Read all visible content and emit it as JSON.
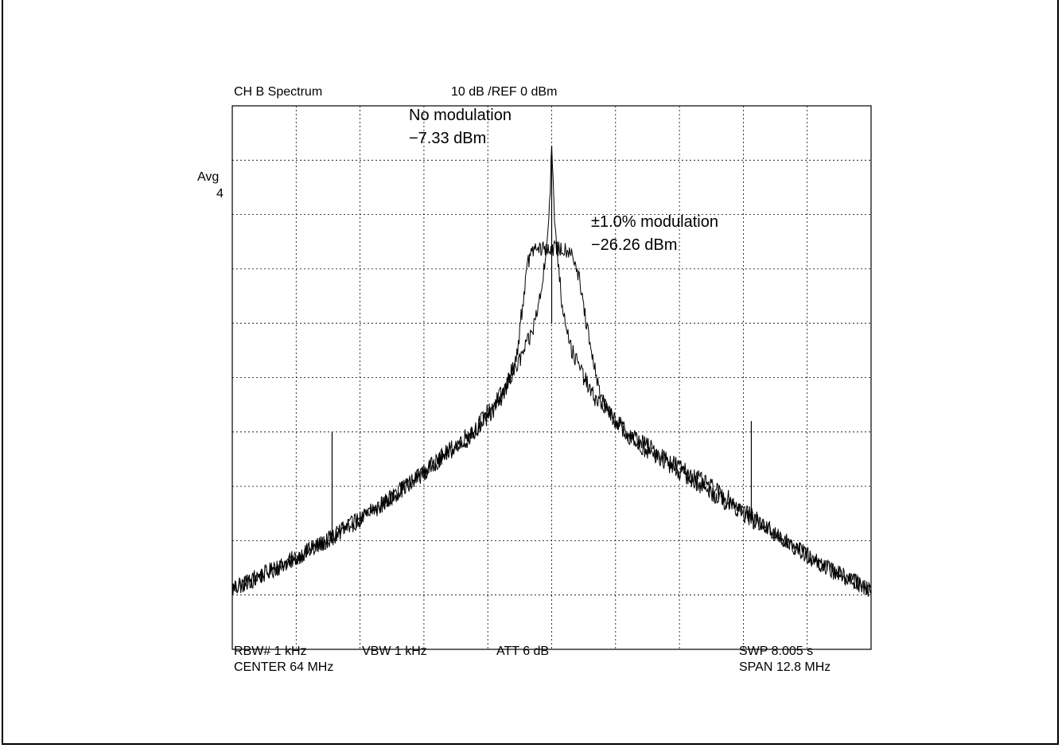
{
  "header": {
    "title": "CH B Spectrum",
    "scale_ref": "10 dB /REF 0 dBm",
    "avg_label": "Avg",
    "avg_value": "4"
  },
  "annotations": {
    "no_mod_title": "No modulation",
    "no_mod_value": "−7.33 dBm",
    "mod_title": "±1.0% modulation",
    "mod_value": "−26.26 dBm"
  },
  "footer": {
    "rbw": "RBW# 1 kHz",
    "vbw": "VBW 1 kHz",
    "att": "ATT 6 dB",
    "swp": "SWP  8.005 s",
    "center": "CENTER  64 MHz",
    "span": "SPAN   12.8 MHz"
  },
  "chart_data": {
    "type": "line",
    "x_unit": "MHz",
    "y_unit": "dBm",
    "xlim": [
      57.6,
      70.4
    ],
    "ylim": [
      -100,
      0
    ],
    "grid": true,
    "series": [
      {
        "points": [
          [
            57.6,
            -89
          ],
          [
            58.5,
            -85
          ],
          [
            59.5,
            -80
          ],
          [
            60.5,
            -74
          ],
          [
            61.5,
            -67
          ],
          [
            62.5,
            -59
          ],
          [
            63.0,
            -53
          ],
          [
            63.3,
            -48
          ],
          [
            63.6,
            -42
          ],
          [
            63.8,
            -34
          ],
          [
            63.95,
            -20
          ],
          [
            64.0,
            -7.33
          ],
          [
            64.05,
            -20
          ],
          [
            64.2,
            -36
          ],
          [
            64.4,
            -45
          ],
          [
            64.8,
            -53
          ],
          [
            65.5,
            -60
          ],
          [
            66.5,
            -66
          ],
          [
            67.5,
            -72
          ],
          [
            68.5,
            -79
          ],
          [
            69.5,
            -85
          ],
          [
            70.4,
            -89
          ]
        ]
      },
      {
        "points": [
          [
            57.6,
            -89
          ],
          [
            58.5,
            -85
          ],
          [
            59.5,
            -80
          ],
          [
            60.5,
            -74
          ],
          [
            61.5,
            -67
          ],
          [
            62.5,
            -60
          ],
          [
            63.0,
            -54
          ],
          [
            63.3,
            -46
          ],
          [
            63.5,
            -30
          ],
          [
            63.6,
            -26.5
          ],
          [
            64.0,
            -26.3
          ],
          [
            64.4,
            -26.5
          ],
          [
            64.55,
            -32
          ],
          [
            64.8,
            -46
          ],
          [
            65.0,
            -54
          ],
          [
            65.5,
            -61
          ],
          [
            66.5,
            -67
          ],
          [
            67.5,
            -73
          ],
          [
            68.5,
            -79
          ],
          [
            69.5,
            -85
          ],
          [
            70.4,
            -89
          ]
        ]
      }
    ],
    "spurs": [
      {
        "x": 59.6,
        "y": -60
      },
      {
        "x": 68.0,
        "y": -58
      }
    ]
  }
}
